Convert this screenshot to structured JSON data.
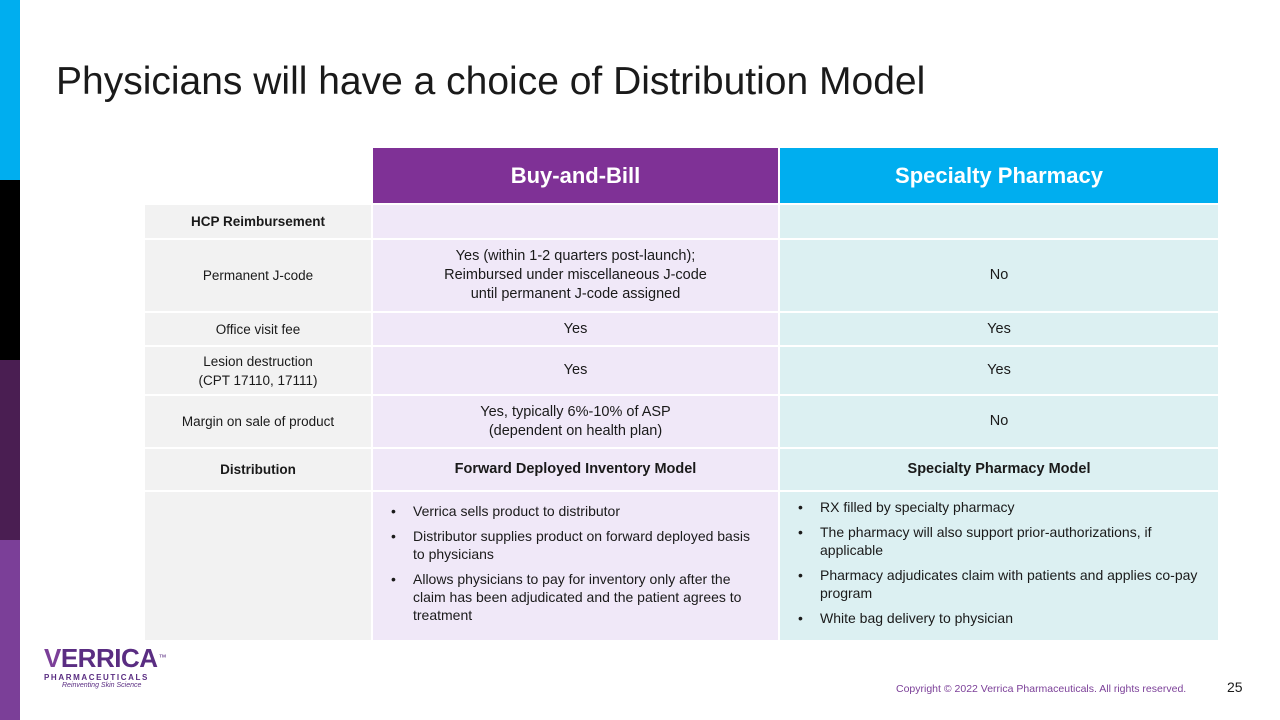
{
  "title": "Physicians will have a choice of Distribution Model",
  "table": {
    "header": {
      "col1": "Buy-and-Bill",
      "col2": "Specialty Pharmacy"
    },
    "section_hcp": "HCP Reimbursement",
    "rows": [
      {
        "label": "Permanent J-code",
        "buy_and_bill": [
          "Yes (within 1-2 quarters post-launch);",
          "Reimbursed under miscellaneous J-code",
          "until permanent J-code assigned"
        ],
        "specialty_pharmacy": "No"
      },
      {
        "label": "Office visit fee",
        "buy_and_bill": "Yes",
        "specialty_pharmacy": "Yes"
      },
      {
        "label_lines": [
          "Lesion destruction",
          "(CPT 17110, 17111)"
        ],
        "buy_and_bill": "Yes",
        "specialty_pharmacy": "Yes"
      },
      {
        "label": "Margin on sale of product",
        "buy_and_bill": [
          "Yes, typically 6%-10% of ASP",
          "(dependent on health plan)"
        ],
        "specialty_pharmacy": "No"
      }
    ],
    "distribution": {
      "label": "Distribution",
      "buy_and_bill": "Forward Deployed Inventory Model",
      "specialty_pharmacy": "Specialty Pharmacy Model"
    },
    "bullets": {
      "buy_and_bill": [
        "Verrica sells product to distributor",
        "Distributor supplies product on forward deployed basis to physicians",
        "Allows physicians to pay for inventory only after the claim has been adjudicated and the patient agrees to treatment"
      ],
      "specialty_pharmacy": [
        "RX filled by specialty pharmacy",
        "The pharmacy will also support prior-authorizations, if applicable",
        "Pharmacy adjudicates claim with patients and applies co-pay program",
        "White bag delivery to physician"
      ]
    }
  },
  "logo": {
    "word_v": "V",
    "word_rest": "ERRICA",
    "tm": "™",
    "sub": "PHARMACEUTICALS",
    "tagline": "Reinventing Skin Science"
  },
  "footer": {
    "copyright": "Copyright © 2022 Verrica Pharmaceuticals. All rights reserved.",
    "page_number": "25"
  },
  "colors": {
    "buy_and_bill_header": "#7f3196",
    "specialty_pharmacy_header": "#00aeef",
    "buy_and_bill_cell": "#f0e8f8",
    "specialty_pharmacy_cell": "#dcf0f2",
    "label_cell": "#f2f2f2"
  }
}
